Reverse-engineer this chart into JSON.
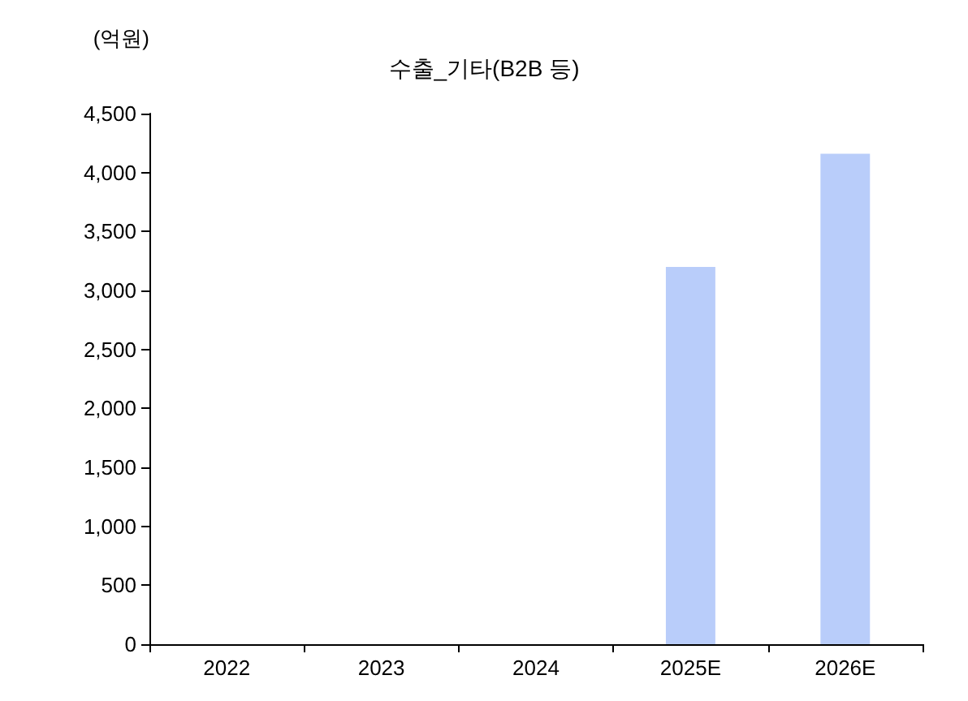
{
  "chart_data": {
    "type": "bar",
    "title": "수출_기타(B2B 등)",
    "ylabel": "(억원)",
    "categories": [
      "2022",
      "2023",
      "2024",
      "2025E",
      "2026E"
    ],
    "values": [
      0,
      0,
      0,
      3200,
      4160
    ],
    "color": "#b9cdfa",
    "ylim": [
      0,
      4500
    ],
    "yticks": [
      0,
      500,
      {
        "value": 1000,
        "label": "1,000"
      },
      {
        "value": 1500,
        "label": "1,500"
      },
      {
        "value": 2000,
        "label": "2,000"
      },
      {
        "value": 2500,
        "label": "2,500"
      },
      {
        "value": 3000,
        "label": "3,000"
      },
      {
        "value": 3500,
        "label": "3,500"
      },
      {
        "value": 4000,
        "label": "4,000"
      },
      {
        "value": 4500,
        "label": "4,500"
      }
    ],
    "grid": false
  }
}
